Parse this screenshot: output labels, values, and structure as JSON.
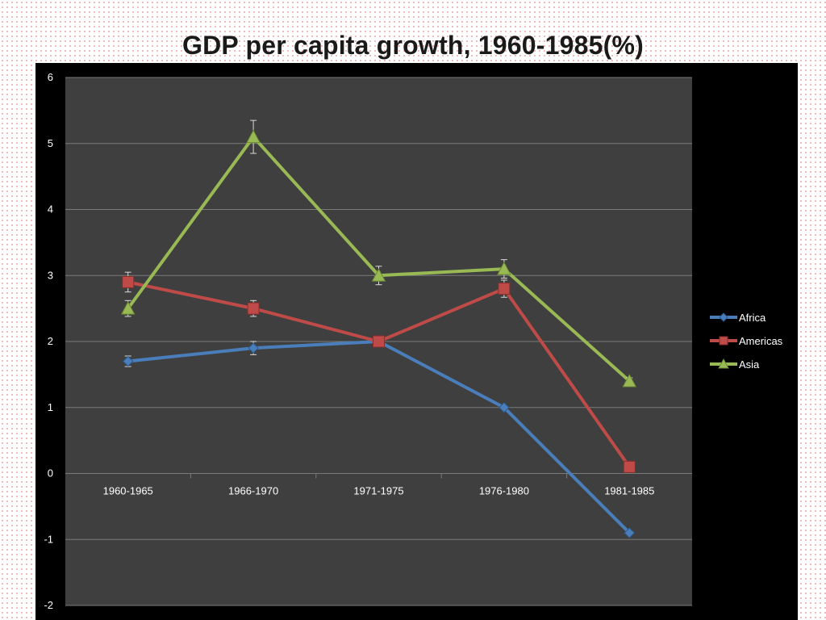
{
  "slide": {
    "title": "GDP per capita growth, 1960-1985(%)"
  },
  "colors": {
    "Africa": "#4a7ebb",
    "Americas": "#be4b48",
    "Asia": "#98b954",
    "plot_bg": "#3f3f3f",
    "outer_bg": "#000000",
    "grid": "#7a7a7a",
    "error_bar": "#d9d9d9"
  },
  "chart_data": {
    "type": "line",
    "title": "GDP per capita growth, 1960-1985(%)",
    "xlabel": "",
    "ylabel": "",
    "categories": [
      "1960-1965",
      "1966-1970",
      "1971-1975",
      "1976-1980",
      "1981-1985"
    ],
    "ylim": [
      -2,
      6
    ],
    "yticks": [
      "6",
      "5",
      "4",
      "3",
      "2",
      "1",
      "0",
      "-1",
      "-2"
    ],
    "grid": true,
    "legend_position": "right",
    "series": [
      {
        "name": "Africa",
        "marker": "diamond",
        "values": [
          1.7,
          1.9,
          2.0,
          1.0,
          -0.9
        ],
        "error": [
          0.08,
          0.1,
          0.0,
          0.0,
          0.0
        ]
      },
      {
        "name": "Americas",
        "marker": "square",
        "values": [
          2.9,
          2.5,
          2.0,
          2.8,
          0.1
        ],
        "error": [
          0.15,
          0.12,
          0.0,
          0.13,
          0.0
        ]
      },
      {
        "name": "Asia",
        "marker": "triangle",
        "values": [
          2.5,
          5.1,
          3.0,
          3.1,
          1.4
        ],
        "error": [
          0.12,
          0.25,
          0.14,
          0.14,
          0.05
        ]
      }
    ]
  }
}
